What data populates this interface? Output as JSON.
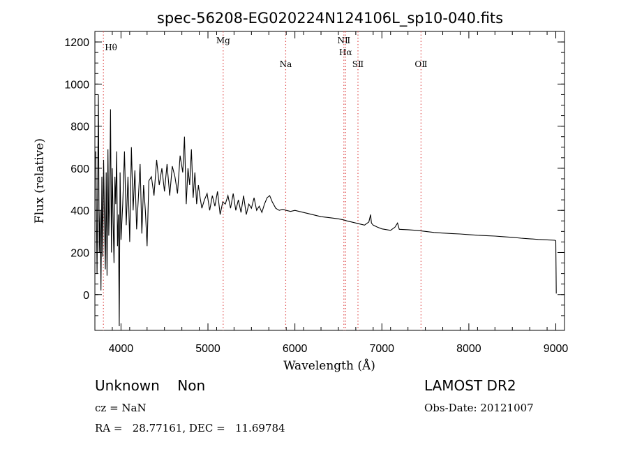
{
  "chart_data": {
    "type": "line",
    "title": "spec-56208-EG020224N124106L_sp10-040.fits",
    "xlabel": "Wavelength (Å)",
    "ylabel": "Flux (relative)",
    "xlim": [
      3700,
      9100
    ],
    "ylim": [
      -170,
      1250
    ],
    "xticks": [
      4000,
      5000,
      6000,
      7000,
      8000,
      9000
    ],
    "yticks": [
      0,
      200,
      400,
      600,
      800,
      1000,
      1200
    ],
    "grid": false,
    "series": [
      {
        "x": [
          3710,
          3725,
          3740,
          3750,
          3760,
          3770,
          3780,
          3790,
          3800,
          3810,
          3820,
          3830,
          3840,
          3850,
          3860,
          3870,
          3880,
          3890,
          3900,
          3910,
          3920,
          3930,
          3940,
          3950,
          3960,
          3970,
          3980,
          3990,
          4000,
          4020,
          4040,
          4060,
          4080,
          4100,
          4120,
          4140,
          4160,
          4180,
          4200,
          4220,
          4240,
          4260,
          4280,
          4300,
          4320,
          4350,
          4380,
          4410,
          4440,
          4470,
          4500,
          4530,
          4560,
          4590,
          4620,
          4650,
          4680,
          4710,
          4730,
          4750,
          4770,
          4790,
          4810,
          4830,
          4850,
          4870,
          4890,
          4910,
          4930,
          4960,
          4990,
          5020,
          5050,
          5080,
          5110,
          5140,
          5170,
          5200,
          5230,
          5260,
          5290,
          5320,
          5350,
          5380,
          5410,
          5440,
          5470,
          5500,
          5530,
          5560,
          5590,
          5620,
          5650,
          5680,
          5710,
          5740,
          5780,
          5820,
          5860,
          5900,
          5950,
          6000,
          6100,
          6200,
          6300,
          6400,
          6500,
          6560,
          6600,
          6650,
          6700,
          6750,
          6800,
          6850,
          6870,
          6880,
          6900,
          6950,
          7000,
          7100,
          7150,
          7180,
          7200,
          7300,
          7400,
          7500,
          7600,
          7700,
          7800,
          7900,
          8000,
          8100,
          8200,
          8300,
          8400,
          8500,
          8600,
          8700,
          8800,
          8900,
          8990,
          9000,
          9005
        ],
        "y": [
          680,
          100,
          950,
          200,
          400,
          20,
          560,
          180,
          640,
          360,
          120,
          580,
          90,
          690,
          280,
          470,
          880,
          200,
          600,
          340,
          150,
          560,
          430,
          680,
          230,
          380,
          -150,
          580,
          260,
          430,
          680,
          330,
          560,
          250,
          700,
          400,
          590,
          310,
          460,
          620,
          290,
          520,
          400,
          230,
          540,
          560,
          470,
          640,
          520,
          600,
          490,
          620,
          470,
          610,
          560,
          480,
          660,
          580,
          750,
          430,
          600,
          520,
          690,
          460,
          580,
          430,
          520,
          460,
          410,
          450,
          480,
          400,
          470,
          420,
          490,
          380,
          440,
          430,
          470,
          410,
          480,
          400,
          450,
          390,
          470,
          380,
          430,
          410,
          460,
          400,
          420,
          390,
          430,
          460,
          470,
          440,
          410,
          400,
          405,
          400,
          395,
          400,
          390,
          380,
          370,
          365,
          360,
          355,
          350,
          345,
          340,
          335,
          330,
          345,
          380,
          340,
          330,
          320,
          312,
          305,
          320,
          340,
          310,
          308,
          305,
          300,
          295,
          292,
          290,
          288,
          285,
          282,
          280,
          278,
          275,
          272,
          268,
          265,
          262,
          260,
          258,
          255,
          5
        ]
      }
    ],
    "lines": [
      {
        "label": "Hθ",
        "x": 3798
      },
      {
        "label": "Mg",
        "x": 5175
      },
      {
        "label": "Na",
        "x": 5894
      },
      {
        "label": "NⅡ",
        "x": 6563
      },
      {
        "label": "Hα",
        "x": 6583
      },
      {
        "label": "SⅡ",
        "x": 6725
      },
      {
        "label": "OⅡ",
        "x": 7450
      }
    ]
  },
  "footer": {
    "class_label": "Unknown    Non",
    "cz": "cz = NaN",
    "coords": "RA =   28.77161, DEC =   11.69784",
    "survey": "LAMOST DR2",
    "obs_date": "Obs-Date: 20121007"
  },
  "colors": {
    "line_marker": "#e05050",
    "axis": "#000000",
    "trace": "#000000"
  }
}
